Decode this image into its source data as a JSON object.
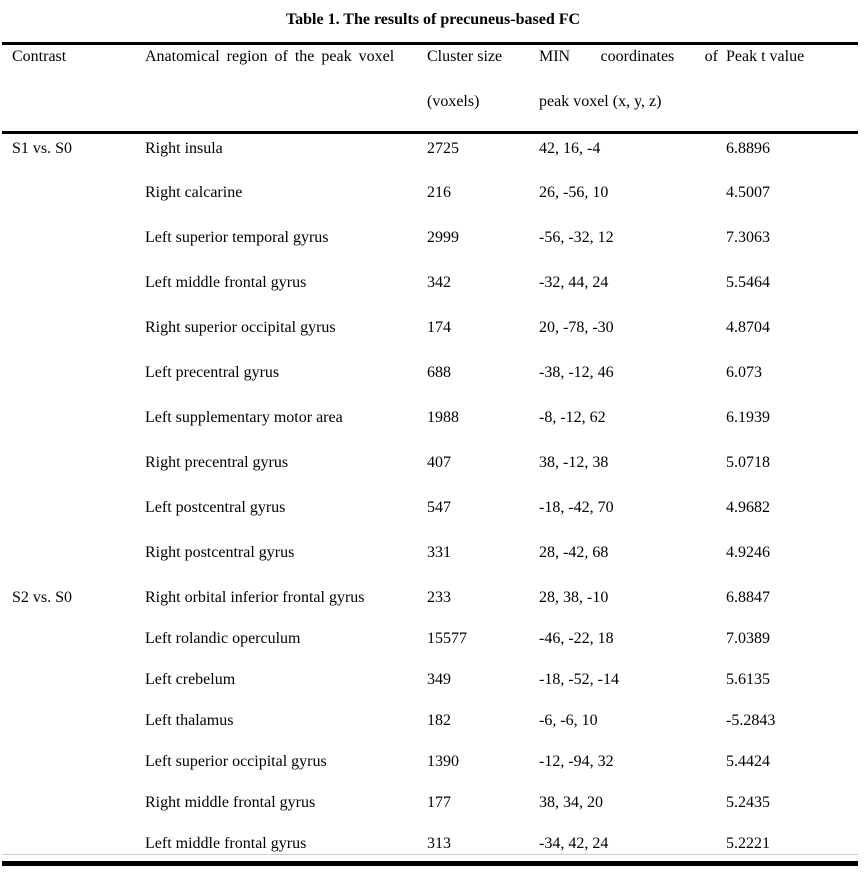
{
  "title": "Table 1. The results of precuneus-based FC",
  "colors": {
    "text": "#000000",
    "background": "#ffffff",
    "rule": "#000000"
  },
  "table": {
    "headers": {
      "contrast": {
        "line1": "Contrast",
        "line2": ""
      },
      "region": {
        "line1": "Anatomical region of the peak voxel",
        "line2": ""
      },
      "cluster_size": {
        "line1": "Cluster size",
        "line2": "(voxels)"
      },
      "coordinates": {
        "line1": "MIN coordinates of",
        "line2": "peak voxel (x, y, z)"
      },
      "peak_t": {
        "line1": "Peak t value",
        "line2": ""
      }
    },
    "groups": [
      {
        "contrast": "S1 vs. S0",
        "rows": [
          {
            "region": "Right insula",
            "cluster_size": "2725",
            "coordinates": "42, 16, -4",
            "peak_t": "6.8896"
          },
          {
            "region": "Right calcarine",
            "cluster_size": "216",
            "coordinates": "26, -56, 10",
            "peak_t": "4.5007"
          },
          {
            "region": "Left superior temporal gyrus",
            "cluster_size": "2999",
            "coordinates": "-56, -32, 12",
            "peak_t": "7.3063"
          },
          {
            "region": "Left middle frontal gyrus",
            "cluster_size": "342",
            "coordinates": "-32, 44, 24",
            "peak_t": "5.5464"
          },
          {
            "region": "Right superior occipital gyrus",
            "cluster_size": "174",
            "coordinates": "20, -78, -30",
            "peak_t": "4.8704"
          },
          {
            "region": "Left precentral gyrus",
            "cluster_size": "688",
            "coordinates": "-38, -12, 46",
            "peak_t": "6.073"
          },
          {
            "region": "Left supplementary motor area",
            "cluster_size": "1988",
            "coordinates": "-8, -12, 62",
            "peak_t": "6.1939"
          },
          {
            "region": "Right precentral gyrus",
            "cluster_size": "407",
            "coordinates": "38, -12, 38",
            "peak_t": "5.0718"
          },
          {
            "region": "Left postcentral gyrus",
            "cluster_size": "547",
            "coordinates": "-18, -42, 70",
            "peak_t": "4.9682"
          },
          {
            "region": "Right postcentral gyrus",
            "cluster_size": "331",
            "coordinates": "28, -42, 68",
            "peak_t": "4.9246"
          }
        ]
      },
      {
        "contrast": "S2 vs. S0",
        "rows": [
          {
            "region": "Right orbital inferior frontal gyrus",
            "cluster_size": "233",
            "coordinates": "28, 38, -10",
            "peak_t": "6.8847"
          },
          {
            "region": "Left rolandic operculum",
            "cluster_size": "15577",
            "coordinates": "-46, -22, 18",
            "peak_t": "7.0389"
          },
          {
            "region": "Left crebelum",
            "cluster_size": "349",
            "coordinates": "-18, -52, -14",
            "peak_t": "5.6135"
          },
          {
            "region": "Left thalamus",
            "cluster_size": "182",
            "coordinates": "-6, -6, 10",
            "peak_t": "-5.2843"
          },
          {
            "region": "Left superior occipital gyrus",
            "cluster_size": "1390",
            "coordinates": "-12, -94, 32",
            "peak_t": "5.4424"
          },
          {
            "region": "Right middle frontal gyrus",
            "cluster_size": "177",
            "coordinates": "38, 34, 20",
            "peak_t": "5.2435"
          },
          {
            "region": "Left middle frontal gyrus",
            "cluster_size": "313",
            "coordinates": "-34, 42, 24",
            "peak_t": "5.2221"
          }
        ]
      }
    ]
  }
}
